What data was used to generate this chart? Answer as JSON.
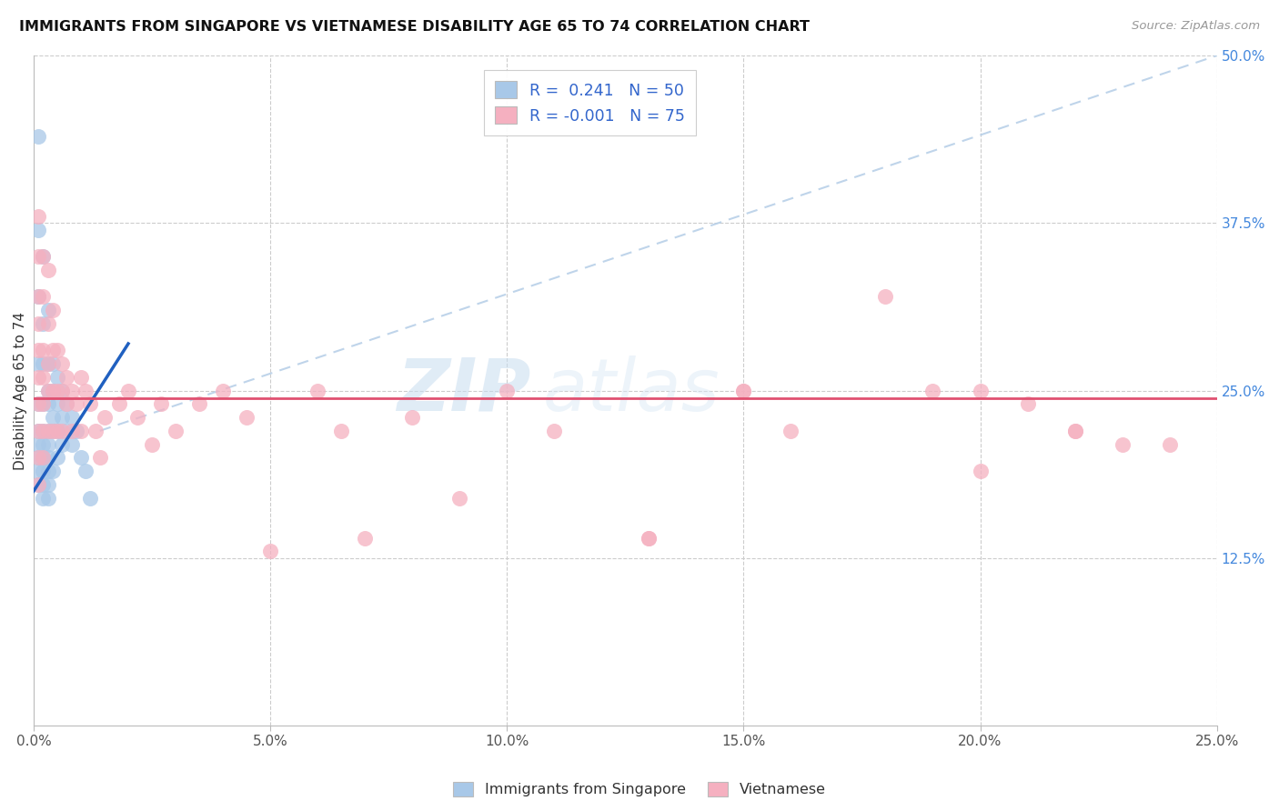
{
  "title": "IMMIGRANTS FROM SINGAPORE VS VIETNAMESE DISABILITY AGE 65 TO 74 CORRELATION CHART",
  "source": "Source: ZipAtlas.com",
  "ylabel": "Disability Age 65 to 74",
  "legend_label1": "Immigrants from Singapore",
  "legend_label2": "Vietnamese",
  "r1": 0.241,
  "n1": 50,
  "r2": -0.001,
  "n2": 75,
  "xlim": [
    0.0,
    0.25
  ],
  "ylim": [
    0.0,
    0.5
  ],
  "color_singapore": "#a8c8e8",
  "color_vietnamese": "#f5b0c0",
  "color_singapore_line": "#2060c0",
  "color_vietnamese_line": "#e05070",
  "color_ref_line": "#b8d0e8",
  "watermark_zip": "ZIP",
  "watermark_atlas": "atlas",
  "sg_x": [
    0.001,
    0.001,
    0.001,
    0.001,
    0.001,
    0.001,
    0.001,
    0.001,
    0.001,
    0.001,
    0.002,
    0.002,
    0.002,
    0.002,
    0.002,
    0.002,
    0.002,
    0.002,
    0.002,
    0.002,
    0.003,
    0.003,
    0.003,
    0.003,
    0.003,
    0.003,
    0.003,
    0.003,
    0.003,
    0.003,
    0.004,
    0.004,
    0.004,
    0.004,
    0.004,
    0.005,
    0.005,
    0.005,
    0.005,
    0.006,
    0.006,
    0.006,
    0.007,
    0.007,
    0.008,
    0.008,
    0.009,
    0.01,
    0.011,
    0.012
  ],
  "sg_y": [
    0.44,
    0.37,
    0.32,
    0.27,
    0.24,
    0.22,
    0.21,
    0.2,
    0.19,
    0.18,
    0.35,
    0.3,
    0.27,
    0.24,
    0.22,
    0.21,
    0.2,
    0.19,
    0.18,
    0.17,
    0.31,
    0.27,
    0.25,
    0.24,
    0.22,
    0.21,
    0.2,
    0.19,
    0.18,
    0.17,
    0.27,
    0.25,
    0.23,
    0.22,
    0.19,
    0.26,
    0.24,
    0.22,
    0.2,
    0.25,
    0.23,
    0.21,
    0.24,
    0.22,
    0.23,
    0.21,
    0.22,
    0.2,
    0.19,
    0.17
  ],
  "vn_x": [
    0.001,
    0.001,
    0.001,
    0.001,
    0.001,
    0.001,
    0.001,
    0.001,
    0.001,
    0.001,
    0.002,
    0.002,
    0.002,
    0.002,
    0.002,
    0.002,
    0.002,
    0.003,
    0.003,
    0.003,
    0.003,
    0.003,
    0.004,
    0.004,
    0.004,
    0.004,
    0.005,
    0.005,
    0.005,
    0.006,
    0.006,
    0.006,
    0.007,
    0.007,
    0.008,
    0.008,
    0.009,
    0.01,
    0.01,
    0.011,
    0.012,
    0.013,
    0.014,
    0.015,
    0.018,
    0.02,
    0.022,
    0.025,
    0.027,
    0.03,
    0.035,
    0.04,
    0.045,
    0.05,
    0.06,
    0.065,
    0.07,
    0.08,
    0.09,
    0.1,
    0.11,
    0.13,
    0.15,
    0.16,
    0.18,
    0.19,
    0.2,
    0.21,
    0.22,
    0.23,
    0.13,
    0.15,
    0.2,
    0.22,
    0.24
  ],
  "vn_y": [
    0.38,
    0.35,
    0.32,
    0.3,
    0.28,
    0.26,
    0.24,
    0.22,
    0.2,
    0.18,
    0.35,
    0.32,
    0.28,
    0.26,
    0.24,
    0.22,
    0.2,
    0.34,
    0.3,
    0.27,
    0.25,
    0.22,
    0.31,
    0.28,
    0.25,
    0.22,
    0.28,
    0.25,
    0.22,
    0.27,
    0.25,
    0.22,
    0.26,
    0.24,
    0.25,
    0.22,
    0.24,
    0.26,
    0.22,
    0.25,
    0.24,
    0.22,
    0.2,
    0.23,
    0.24,
    0.25,
    0.23,
    0.21,
    0.24,
    0.22,
    0.24,
    0.25,
    0.23,
    0.13,
    0.25,
    0.22,
    0.14,
    0.23,
    0.17,
    0.25,
    0.22,
    0.14,
    0.25,
    0.22,
    0.32,
    0.25,
    0.25,
    0.24,
    0.22,
    0.21,
    0.14,
    0.25,
    0.19,
    0.22,
    0.21
  ]
}
